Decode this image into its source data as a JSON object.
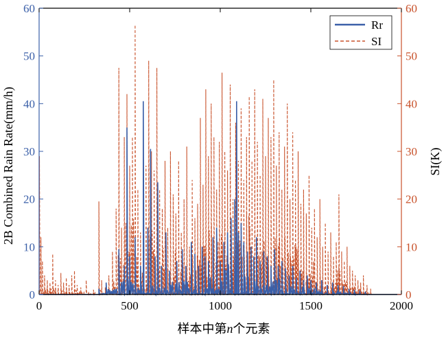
{
  "chart_data": {
    "type": "line",
    "xlabel": "样本中第n个元素",
    "xlabel_parts": {
      "before": "样本中第",
      "italic": "n",
      "after": "个元素"
    },
    "ylabel_left": "2B Combined Rain Rate(mm/h)",
    "ylabel_right": "SI(K)",
    "xlim": [
      0,
      2000
    ],
    "ylim_left": [
      0,
      60
    ],
    "ylim_right": [
      0,
      60
    ],
    "x_ticks": [
      0,
      500,
      1000,
      1500,
      2000
    ],
    "y_ticks": [
      0,
      10,
      20,
      30,
      40,
      50,
      60
    ],
    "x_tick_labels": [
      "0",
      "500",
      "1000",
      "1500",
      "2000"
    ],
    "y_tick_labels": [
      "0",
      "10",
      "20",
      "30",
      "40",
      "50",
      "60"
    ],
    "grid": false,
    "legend_position": "top-right",
    "colors": {
      "left_axis": "#3a5fa8",
      "right_axis": "#c8512a",
      "rr": "#3a5fa8",
      "si": "#c8512a"
    },
    "series": [
      {
        "name": "Rr",
        "axis": "left",
        "style": "solid",
        "color": "#3a5fa8",
        "peaks": [
          [
            330,
            1.2
          ],
          [
            370,
            2.5
          ],
          [
            440,
            9.5
          ],
          [
            470,
            6
          ],
          [
            485,
            35
          ],
          [
            500,
            8
          ],
          [
            530,
            12
          ],
          [
            560,
            6
          ],
          [
            575,
            40.5
          ],
          [
            600,
            14
          ],
          [
            615,
            30.5
          ],
          [
            640,
            8
          ],
          [
            655,
            23.5
          ],
          [
            675,
            6
          ],
          [
            700,
            13
          ],
          [
            720,
            5
          ],
          [
            760,
            7
          ],
          [
            790,
            9.5
          ],
          [
            810,
            6
          ],
          [
            840,
            11
          ],
          [
            860,
            8.5
          ],
          [
            880,
            6
          ],
          [
            900,
            10
          ],
          [
            915,
            8
          ],
          [
            935,
            7
          ],
          [
            960,
            12
          ],
          [
            980,
            14
          ],
          [
            1000,
            7
          ],
          [
            1020,
            11
          ],
          [
            1040,
            13
          ],
          [
            1060,
            16
          ],
          [
            1080,
            20
          ],
          [
            1090,
            40.5
          ],
          [
            1100,
            13
          ],
          [
            1115,
            15
          ],
          [
            1130,
            11
          ],
          [
            1150,
            9
          ],
          [
            1170,
            10
          ],
          [
            1185,
            8
          ],
          [
            1200,
            12
          ],
          [
            1220,
            7
          ],
          [
            1240,
            9
          ],
          [
            1260,
            8
          ],
          [
            1280,
            6
          ],
          [
            1300,
            9.5
          ],
          [
            1320,
            6
          ],
          [
            1340,
            7
          ],
          [
            1360,
            5.5
          ],
          [
            1380,
            4
          ],
          [
            1400,
            6
          ],
          [
            1420,
            3.5
          ],
          [
            1440,
            5
          ],
          [
            1460,
            3
          ],
          [
            1480,
            4
          ],
          [
            1500,
            3
          ],
          [
            1530,
            2.5
          ],
          [
            1560,
            3
          ],
          [
            1590,
            2
          ],
          [
            1620,
            2.5
          ],
          [
            1650,
            2
          ],
          [
            1680,
            1.8
          ],
          [
            1710,
            1.2
          ],
          [
            1740,
            1
          ],
          [
            1770,
            0.8
          ],
          [
            1800,
            0.6
          ]
        ]
      },
      {
        "name": "SI",
        "axis": "right",
        "style": "dashed",
        "color": "#c8512a",
        "peaks": [
          [
            2,
            29
          ],
          [
            10,
            12
          ],
          [
            18,
            7
          ],
          [
            30,
            4
          ],
          [
            45,
            3
          ],
          [
            60,
            2.5
          ],
          [
            75,
            8.5
          ],
          [
            90,
            3
          ],
          [
            105,
            2
          ],
          [
            120,
            4.5
          ],
          [
            135,
            2.5
          ],
          [
            150,
            3.5
          ],
          [
            165,
            2
          ],
          [
            180,
            4
          ],
          [
            195,
            5
          ],
          [
            210,
            2
          ],
          [
            230,
            1.5
          ],
          [
            260,
            3
          ],
          [
            300,
            1
          ],
          [
            330,
            19.5
          ],
          [
            345,
            3
          ],
          [
            365,
            1.5
          ],
          [
            385,
            4
          ],
          [
            405,
            9
          ],
          [
            425,
            18
          ],
          [
            440,
            47.5
          ],
          [
            455,
            14
          ],
          [
            470,
            33
          ],
          [
            485,
            42
          ],
          [
            500,
            27
          ],
          [
            515,
            33
          ],
          [
            530,
            56.5
          ],
          [
            545,
            22
          ],
          [
            560,
            13
          ],
          [
            575,
            15
          ],
          [
            590,
            27
          ],
          [
            605,
            49
          ],
          [
            620,
            30
          ],
          [
            635,
            26
          ],
          [
            650,
            47.5
          ],
          [
            665,
            22
          ],
          [
            680,
            18
          ],
          [
            695,
            28
          ],
          [
            710,
            14
          ],
          [
            725,
            30
          ],
          [
            740,
            21
          ],
          [
            755,
            17
          ],
          [
            770,
            28
          ],
          [
            785,
            13
          ],
          [
            800,
            20
          ],
          [
            815,
            31
          ],
          [
            830,
            10
          ],
          [
            845,
            24
          ],
          [
            860,
            16
          ],
          [
            875,
            19
          ],
          [
            890,
            37
          ],
          [
            905,
            23
          ],
          [
            920,
            43
          ],
          [
            935,
            29
          ],
          [
            950,
            40
          ],
          [
            965,
            33
          ],
          [
            980,
            22
          ],
          [
            995,
            32
          ],
          [
            1010,
            46.5
          ],
          [
            1025,
            30
          ],
          [
            1040,
            26
          ],
          [
            1055,
            44
          ],
          [
            1070,
            20
          ],
          [
            1085,
            36
          ],
          [
            1100,
            28
          ],
          [
            1115,
            39
          ],
          [
            1130,
            24
          ],
          [
            1145,
            33
          ],
          [
            1160,
            41.5
          ],
          [
            1175,
            28
          ],
          [
            1190,
            43
          ],
          [
            1205,
            32
          ],
          [
            1220,
            25
          ],
          [
            1235,
            41
          ],
          [
            1250,
            29
          ],
          [
            1265,
            37
          ],
          [
            1280,
            33
          ],
          [
            1295,
            45
          ],
          [
            1310,
            27
          ],
          [
            1325,
            34
          ],
          [
            1340,
            22
          ],
          [
            1355,
            31
          ],
          [
            1370,
            40
          ],
          [
            1385,
            20
          ],
          [
            1400,
            34
          ],
          [
            1415,
            24
          ],
          [
            1430,
            30
          ],
          [
            1445,
            19
          ],
          [
            1460,
            22
          ],
          [
            1475,
            17
          ],
          [
            1490,
            25
          ],
          [
            1505,
            14
          ],
          [
            1520,
            18
          ],
          [
            1535,
            12
          ],
          [
            1550,
            20
          ],
          [
            1565,
            10
          ],
          [
            1580,
            15
          ],
          [
            1595,
            9
          ],
          [
            1610,
            13
          ],
          [
            1625,
            8
          ],
          [
            1640,
            11
          ],
          [
            1655,
            21
          ],
          [
            1670,
            9
          ],
          [
            1685,
            7
          ],
          [
            1700,
            10
          ],
          [
            1715,
            6
          ],
          [
            1730,
            5
          ],
          [
            1745,
            4
          ],
          [
            1760,
            3
          ],
          [
            1775,
            2.5
          ],
          [
            1790,
            4
          ],
          [
            1810,
            2
          ],
          [
            1830,
            1.2
          ]
        ]
      }
    ]
  }
}
